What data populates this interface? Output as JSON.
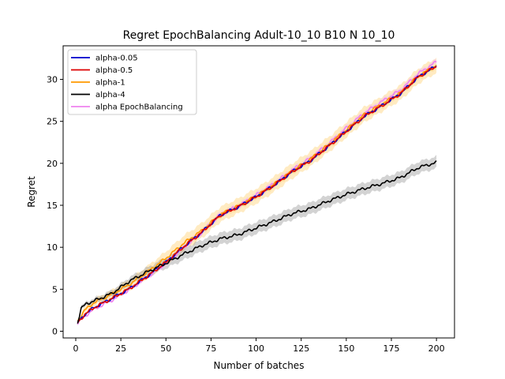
{
  "chart_data": {
    "type": "line",
    "title": "Regret EpochBalancing Adult-10_10 B10 N 10_10",
    "xlabel": "Number of batches",
    "ylabel": "Regret",
    "xlim": [
      -7,
      210
    ],
    "ylim": [
      -0.8,
      34
    ],
    "xticks": [
      0,
      25,
      50,
      75,
      100,
      125,
      150,
      175,
      200
    ],
    "yticks": [
      0,
      5,
      10,
      15,
      20,
      25,
      30
    ],
    "legend_position": "upper-left",
    "series": [
      {
        "name": "alpha-0.05",
        "color": "#0000cc",
        "band_color": "#ffd080",
        "band": 0.0,
        "points": [
          [
            1,
            1.0
          ],
          [
            5,
            2.0
          ],
          [
            10,
            2.8
          ],
          [
            20,
            3.9
          ],
          [
            30,
            5.1
          ],
          [
            40,
            6.6
          ],
          [
            50,
            8.2
          ],
          [
            60,
            10.1
          ],
          [
            70,
            11.8
          ],
          [
            80,
            13.8
          ],
          [
            90,
            14.8
          ],
          [
            100,
            16.0
          ],
          [
            110,
            17.4
          ],
          [
            120,
            19.0
          ],
          [
            130,
            20.3
          ],
          [
            140,
            22.0
          ],
          [
            150,
            23.8
          ],
          [
            160,
            25.6
          ],
          [
            170,
            26.9
          ],
          [
            180,
            28.3
          ],
          [
            190,
            30.3
          ],
          [
            200,
            31.6
          ]
        ]
      },
      {
        "name": "alpha-0.5",
        "color": "#dd0000",
        "band_color": "#ffd080",
        "band": 0.3,
        "points": [
          [
            1,
            1.0
          ],
          [
            5,
            2.0
          ],
          [
            10,
            2.8
          ],
          [
            20,
            3.9
          ],
          [
            30,
            5.1
          ],
          [
            40,
            6.6
          ],
          [
            50,
            8.2
          ],
          [
            60,
            10.1
          ],
          [
            70,
            11.8
          ],
          [
            80,
            13.8
          ],
          [
            90,
            14.8
          ],
          [
            100,
            16.0
          ],
          [
            110,
            17.4
          ],
          [
            120,
            19.0
          ],
          [
            130,
            20.3
          ],
          [
            140,
            22.0
          ],
          [
            150,
            23.8
          ],
          [
            160,
            25.6
          ],
          [
            170,
            26.9
          ],
          [
            180,
            28.3
          ],
          [
            190,
            30.3
          ],
          [
            200,
            31.6
          ]
        ]
      },
      {
        "name": "alpha-1",
        "color": "#ff9900",
        "band_color": "#ffcc66",
        "band": 0.9,
        "points": [
          [
            1,
            1.2
          ],
          [
            5,
            2.5
          ],
          [
            10,
            3.4
          ],
          [
            20,
            4.4
          ],
          [
            30,
            5.6
          ],
          [
            40,
            7.1
          ],
          [
            50,
            8.7
          ],
          [
            60,
            10.5
          ],
          [
            70,
            12.0
          ],
          [
            80,
            13.9
          ],
          [
            90,
            14.9
          ],
          [
            100,
            16.1
          ],
          [
            110,
            17.5
          ],
          [
            120,
            19.1
          ],
          [
            130,
            20.5
          ],
          [
            140,
            22.2
          ],
          [
            150,
            24.0
          ],
          [
            160,
            25.8
          ],
          [
            170,
            27.1
          ],
          [
            180,
            28.4
          ],
          [
            190,
            30.4
          ],
          [
            200,
            31.7
          ]
        ]
      },
      {
        "name": "alpha-4",
        "color": "#000000",
        "band_color": "#909090",
        "band": 0.7,
        "points": [
          [
            1,
            1.0
          ],
          [
            3,
            2.7
          ],
          [
            6,
            3.3
          ],
          [
            10,
            3.6
          ],
          [
            20,
            4.5
          ],
          [
            30,
            6.0
          ],
          [
            40,
            7.1
          ],
          [
            50,
            8.1
          ],
          [
            60,
            9.2
          ],
          [
            70,
            10.2
          ],
          [
            80,
            11.0
          ],
          [
            90,
            11.5
          ],
          [
            100,
            12.3
          ],
          [
            110,
            13.1
          ],
          [
            120,
            14.0
          ],
          [
            130,
            14.6
          ],
          [
            140,
            15.5
          ],
          [
            150,
            16.3
          ],
          [
            160,
            17.0
          ],
          [
            170,
            17.6
          ],
          [
            180,
            18.3
          ],
          [
            190,
            19.5
          ],
          [
            200,
            20.1
          ]
        ]
      },
      {
        "name": "alpha EpochBalancing",
        "color": "#ee82ee",
        "band_color": "#f0b8f0",
        "band": 0.3,
        "points": [
          [
            1,
            0.9
          ],
          [
            5,
            1.8
          ],
          [
            10,
            2.6
          ],
          [
            20,
            3.7
          ],
          [
            30,
            5.0
          ],
          [
            40,
            6.5
          ],
          [
            50,
            8.1
          ],
          [
            60,
            10.0
          ],
          [
            70,
            11.8
          ],
          [
            80,
            13.9
          ],
          [
            90,
            14.9
          ],
          [
            100,
            16.2
          ],
          [
            110,
            17.6
          ],
          [
            120,
            19.2
          ],
          [
            130,
            20.6
          ],
          [
            140,
            22.3
          ],
          [
            150,
            24.2
          ],
          [
            160,
            26.0
          ],
          [
            170,
            27.4
          ],
          [
            180,
            28.7
          ],
          [
            190,
            30.7
          ],
          [
            200,
            32.1
          ]
        ]
      }
    ]
  }
}
